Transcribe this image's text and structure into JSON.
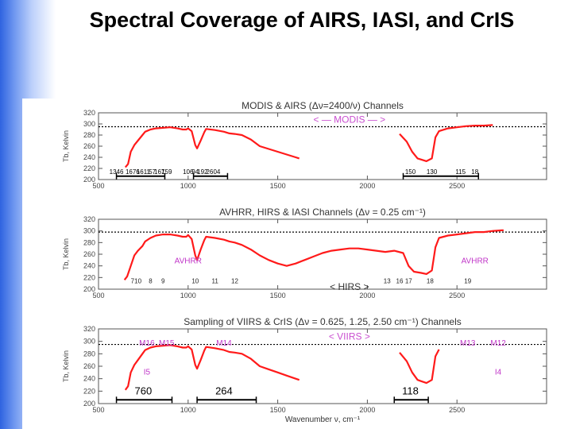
{
  "slide": {
    "title": "Spectral Coverage of AIRS, IASI, and CrIS"
  },
  "colors": {
    "spectrum": "#ff1a1a",
    "channel_black": "#000000",
    "channel_magenta": "#c036c8",
    "channel_green": "#22cc22",
    "channel_cyan": "#19c8d8",
    "reference": "#000000"
  },
  "chart_data": [
    {
      "type": "line",
      "title": "MODIS & AIRS (Δν=2400/ν) Channels",
      "xlabel": "",
      "ylabel": "Tb, Kelvin",
      "xlim": [
        500,
        3000
      ],
      "ylim": [
        200,
        320
      ],
      "xticks": [
        500,
        1000,
        1500,
        2000,
        2500
      ],
      "yticks": [
        200,
        220,
        240,
        260,
        280,
        300,
        320
      ],
      "reference_line_y": 295,
      "series": [
        {
          "x": [
            650,
            665,
            680,
            700,
            720,
            745,
            760,
            790,
            820,
            860,
            900,
            940,
            970,
            990,
            1000,
            1020,
            1040,
            1050,
            1070,
            1090,
            1100,
            1150,
            1200,
            1230,
            1260,
            1300,
            1350,
            1400,
            1450,
            1500,
            1550,
            1600,
            1620
          ],
          "y": [
            222,
            228,
            250,
            262,
            270,
            280,
            286,
            290,
            292,
            293,
            294,
            292,
            290,
            290,
            292,
            287,
            262,
            256,
            270,
            285,
            291,
            289,
            286,
            283,
            282,
            280,
            272,
            260,
            255,
            250,
            245,
            240,
            238
          ]
        },
        {
          "x": [
            2180,
            2220,
            2250,
            2280,
            2300,
            2330,
            2360,
            2380,
            2400,
            2450,
            2500,
            2550,
            2600,
            2650,
            2700
          ],
          "y": [
            282,
            268,
            250,
            238,
            236,
            233,
            238,
            276,
            287,
            292,
            294,
            296,
            297,
            297,
            298
          ]
        }
      ],
      "annotations": [
        {
          "text": "< — MODIS — >",
          "x": 1900,
          "y": 308
        }
      ],
      "band_labels": [
        {
          "text": "1346",
          "x": 600
        },
        {
          "text": "1676",
          "x": 690
        },
        {
          "text": "1611",
          "x": 750
        },
        {
          "text": "57",
          "x": 800
        },
        {
          "text": "167",
          "x": 840
        },
        {
          "text": "159",
          "x": 880
        },
        {
          "text": "106",
          "x": 1000
        },
        {
          "text": "94",
          "x": 1040
        },
        {
          "text": "192",
          "x": 1080
        },
        {
          "text": "26",
          "x": 1120
        },
        {
          "text": "04",
          "x": 1160
        },
        {
          "text": "150",
          "x": 2240
        },
        {
          "text": "130",
          "x": 2360
        },
        {
          "text": "115",
          "x": 2520
        },
        {
          "text": "18",
          "x": 2600
        }
      ],
      "coverage_bars": [
        [
          600,
          870
        ],
        [
          1030,
          1220
        ],
        [
          2200,
          2620
        ]
      ]
    },
    {
      "type": "line",
      "title": "AVHRR, HIRS & IASI Channels (Δν = 0.25 cm⁻¹)",
      "xlabel": "",
      "ylabel": "Tb, Kelvin",
      "xlim": [
        500,
        3000
      ],
      "ylim": [
        200,
        320
      ],
      "xticks": [
        500,
        1000,
        1500,
        2000,
        2500
      ],
      "yticks": [
        200,
        220,
        240,
        260,
        280,
        300,
        320
      ],
      "reference_line_y": 298,
      "series": [
        {
          "x": [
            645,
            660,
            680,
            700,
            720,
            745,
            760,
            790,
            820,
            860,
            900,
            940,
            970,
            990,
            1000,
            1020,
            1040,
            1050,
            1070,
            1090,
            1100,
            1150,
            1200,
            1230,
            1260,
            1300,
            1350,
            1400,
            1450,
            1500,
            1550,
            1600,
            1650,
            1700,
            1750,
            1800,
            1850,
            1900,
            1950,
            2000,
            2050,
            2100,
            2150,
            2200,
            2230,
            2260,
            2300,
            2330,
            2360,
            2380,
            2400,
            2450,
            2500,
            2550,
            2600,
            2650,
            2700,
            2750,
            2760
          ],
          "y": [
            216,
            222,
            240,
            258,
            266,
            274,
            282,
            288,
            292,
            294,
            294,
            292,
            290,
            290,
            293,
            286,
            258,
            250,
            268,
            284,
            290,
            288,
            285,
            282,
            280,
            276,
            268,
            258,
            250,
            244,
            240,
            244,
            250,
            256,
            262,
            266,
            268,
            270,
            270,
            268,
            266,
            264,
            266,
            262,
            240,
            230,
            228,
            226,
            232,
            272,
            288,
            292,
            294,
            296,
            298,
            298,
            300,
            301,
            301
          ]
        }
      ],
      "annotations": [
        {
          "text": "AVHRR",
          "x": 1000,
          "y": 250
        },
        {
          "text": "AVHRR",
          "x": 2600,
          "y": 250
        },
        {
          "text": "< HIRS >",
          "x": 1900,
          "y": 204
        }
      ],
      "band_labels": [
        {
          "text": "7",
          "x": 690
        },
        {
          "text": "10",
          "x": 720
        },
        {
          "text": "8",
          "x": 790
        },
        {
          "text": "9",
          "x": 860
        },
        {
          "text": "10",
          "x": 1040
        },
        {
          "text": "11",
          "x": 1150
        },
        {
          "text": "12",
          "x": 1260
        },
        {
          "text": "13",
          "x": 2110
        },
        {
          "text": "16",
          "x": 2180
        },
        {
          "text": "17",
          "x": 2230
        },
        {
          "text": "18",
          "x": 2350
        },
        {
          "text": "19",
          "x": 2560
        }
      ],
      "coverage_bars": []
    },
    {
      "type": "line",
      "title": "Sampling of VIIRS & CrIS (Δν = 0.625, 1.25, 2.50 cm⁻¹) Channels",
      "xlabel": "Wavenumber ν, cm⁻¹",
      "ylabel": "Tb, Kelvin",
      "xlim": [
        500,
        3000
      ],
      "ylim": [
        200,
        320
      ],
      "xticks": [
        500,
        1000,
        1500,
        2000,
        2500
      ],
      "yticks": [
        200,
        220,
        240,
        260,
        280,
        300,
        320
      ],
      "reference_line_y": 295,
      "series": [
        {
          "x": [
            650,
            665,
            680,
            700,
            720,
            745,
            760,
            790,
            820,
            860,
            900,
            940,
            970,
            990,
            1000,
            1020,
            1040,
            1050,
            1070,
            1090,
            1100,
            1150,
            1200,
            1230,
            1260,
            1300,
            1350,
            1400,
            1450,
            1500,
            1550,
            1600,
            1620
          ],
          "y": [
            222,
            228,
            250,
            262,
            270,
            280,
            286,
            290,
            292,
            293,
            294,
            292,
            290,
            290,
            292,
            287,
            262,
            256,
            270,
            285,
            291,
            289,
            286,
            283,
            282,
            280,
            272,
            260,
            255,
            250,
            245,
            240,
            238
          ]
        },
        {
          "x": [
            2180,
            2220,
            2250,
            2280,
            2300,
            2330,
            2360,
            2380,
            2400
          ],
          "y": [
            282,
            268,
            250,
            238,
            236,
            233,
            238,
            276,
            287
          ]
        }
      ],
      "annotations": [
        {
          "text": "< VIIRS >",
          "x": 1900,
          "y": 308
        },
        {
          "text": "M16",
          "x": 770,
          "y": 298
        },
        {
          "text": "M15",
          "x": 880,
          "y": 298
        },
        {
          "text": "M14",
          "x": 1200,
          "y": 298
        },
        {
          "text": "I5",
          "x": 770,
          "y": 252
        },
        {
          "text": "M13",
          "x": 2560,
          "y": 298
        },
        {
          "text": "M12",
          "x": 2730,
          "y": 298
        },
        {
          "text": "I4",
          "x": 2730,
          "y": 252
        }
      ],
      "band_labels": [
        {
          "text": "760",
          "x": 750
        },
        {
          "text": "264",
          "x": 1200
        },
        {
          "text": "118",
          "x": 2240
        }
      ],
      "coverage_bars": [
        [
          600,
          910
        ],
        [
          1050,
          1380
        ],
        [
          2150,
          2340
        ]
      ]
    }
  ]
}
